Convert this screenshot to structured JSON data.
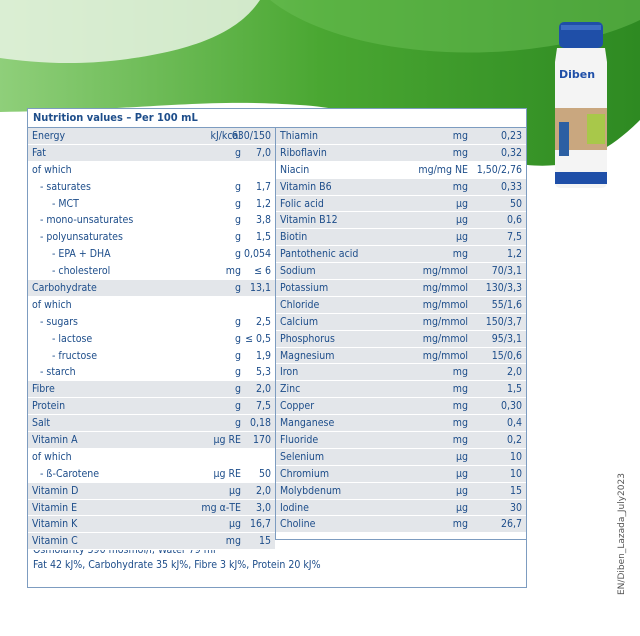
{
  "panel": {
    "title": "Nutrition values – Per 100 mL",
    "left_rows": [
      {
        "name": "Energy",
        "unit": "kJ/kcal",
        "value": "630/150",
        "shade": true,
        "indent": 0
      },
      {
        "name": "Fat",
        "unit": "g",
        "value": "7,0",
        "shade": true,
        "indent": 0
      },
      {
        "name": "of which",
        "unit": "",
        "value": "",
        "shade": false,
        "indent": 0
      },
      {
        "name": "- saturates",
        "unit": "g",
        "value": "1,7",
        "shade": false,
        "indent": 1
      },
      {
        "name": "- MCT",
        "unit": "g",
        "value": "1,2",
        "shade": false,
        "indent": 2
      },
      {
        "name": "- mono-unsaturates",
        "unit": "g",
        "value": "3,8",
        "shade": false,
        "indent": 1
      },
      {
        "name": "- polyunsaturates",
        "unit": "g",
        "value": "1,5",
        "shade": false,
        "indent": 1
      },
      {
        "name": "- EPA + DHA",
        "unit": "g",
        "value": "0,054",
        "shade": false,
        "indent": 2
      },
      {
        "name": "- cholesterol",
        "unit": "mg",
        "value": "≤ 6",
        "shade": false,
        "indent": 2
      },
      {
        "name": "Carbohydrate",
        "unit": "g",
        "value": "13,1",
        "shade": true,
        "indent": 0
      },
      {
        "name": "of which",
        "unit": "",
        "value": "",
        "shade": false,
        "indent": 0
      },
      {
        "name": "- sugars",
        "unit": "g",
        "value": "2,5",
        "shade": false,
        "indent": 1
      },
      {
        "name": "- lactose",
        "unit": "g",
        "value": "≤ 0,5",
        "shade": false,
        "indent": 2
      },
      {
        "name": "- fructose",
        "unit": "g",
        "value": "1,9",
        "shade": false,
        "indent": 2
      },
      {
        "name": "- starch",
        "unit": "g",
        "value": "5,3",
        "shade": false,
        "indent": 1
      },
      {
        "name": "Fibre",
        "unit": "g",
        "value": "2,0",
        "shade": true,
        "indent": 0
      },
      {
        "name": "Protein",
        "unit": "g",
        "value": "7,5",
        "shade": true,
        "indent": 0
      },
      {
        "name": "Salt",
        "unit": "g",
        "value": "0,18",
        "shade": true,
        "indent": 0
      },
      {
        "name": "Vitamin A",
        "unit": "µg RE",
        "value": "170",
        "shade": true,
        "indent": 0
      },
      {
        "name": "of which",
        "unit": "",
        "value": "",
        "shade": false,
        "indent": 0
      },
      {
        "name": "- ß-Carotene",
        "unit": "µg RE",
        "value": "50",
        "shade": false,
        "indent": 1
      },
      {
        "name": "Vitamin D",
        "unit": "µg",
        "value": "2,0",
        "shade": true,
        "indent": 0
      },
      {
        "name": "Vitamin E",
        "unit": "mg α-TE",
        "value": "3,0",
        "shade": true,
        "indent": 0
      },
      {
        "name": "Vitamin K",
        "unit": "µg",
        "value": "16,7",
        "shade": true,
        "indent": 0
      },
      {
        "name": "Vitamin C",
        "unit": "mg",
        "value": "15",
        "shade": true,
        "indent": 0
      }
    ],
    "right_rows": [
      {
        "name": "Thiamin",
        "unit": "mg",
        "value": "0,23",
        "shade": true
      },
      {
        "name": "Riboflavin",
        "unit": "mg",
        "value": "0,32",
        "shade": true
      },
      {
        "name": "Niacin",
        "unit": "mg/mg NE",
        "value": "1,50/2,76",
        "shade": false
      },
      {
        "name": "Vitamin B6",
        "unit": "mg",
        "value": "0,33",
        "shade": true
      },
      {
        "name": "Folic acid",
        "unit": "µg",
        "value": "50",
        "shade": true
      },
      {
        "name": "Vitamin B12",
        "unit": "µg",
        "value": "0,6",
        "shade": true
      },
      {
        "name": "Biotin",
        "unit": "µg",
        "value": "7,5",
        "shade": true
      },
      {
        "name": "Pantothenic acid",
        "unit": "mg",
        "value": "1,2",
        "shade": true
      },
      {
        "name": "Sodium",
        "unit": "mg/mmol",
        "value": "70/3,1",
        "shade": true
      },
      {
        "name": "Potassium",
        "unit": "mg/mmol",
        "value": "130/3,3",
        "shade": true
      },
      {
        "name": "Chloride",
        "unit": "mg/mmol",
        "value": "55/1,6",
        "shade": true
      },
      {
        "name": "Calcium",
        "unit": "mg/mmol",
        "value": "150/3,7",
        "shade": true
      },
      {
        "name": "Phosphorus",
        "unit": "mg/mmol",
        "value": "95/3,1",
        "shade": true
      },
      {
        "name": "Magnesium",
        "unit": "mg/mmol",
        "value": "15/0,6",
        "shade": true
      },
      {
        "name": "Iron",
        "unit": "mg",
        "value": "2,0",
        "shade": true
      },
      {
        "name": "Zinc",
        "unit": "mg",
        "value": "1,5",
        "shade": true
      },
      {
        "name": "Copper",
        "unit": "mg",
        "value": "0,30",
        "shade": true
      },
      {
        "name": "Manganese",
        "unit": "mg",
        "value": "0,4",
        "shade": true
      },
      {
        "name": "Fluoride",
        "unit": "mg",
        "value": "0,2",
        "shade": true
      },
      {
        "name": "Selenium",
        "unit": "µg",
        "value": "10",
        "shade": true
      },
      {
        "name": "Chromium",
        "unit": "µg",
        "value": "10",
        "shade": true
      },
      {
        "name": "Molybdenum",
        "unit": "µg",
        "value": "15",
        "shade": true
      },
      {
        "name": "Iodine",
        "unit": "µg",
        "value": "30",
        "shade": true
      },
      {
        "name": "Choline",
        "unit": "mg",
        "value": "26,7",
        "shade": true
      }
    ],
    "footer_line1": "Osmolarity 390 mosmol/l, Water 79 ml",
    "footer_line2": "Fat 42 kJ%, Carbohydrate 35 kJ%, Fibre 3 kJ%, Protein 20 kJ%"
  },
  "product": {
    "brand": "Diben",
    "cap_color": "#1f4fa8",
    "label_color": "#c9a77f"
  },
  "document_code": "EN/Diben_Lazada_July2023",
  "colors": {
    "wave_green": "#3f9a2a",
    "text_blue": "#1d4d8a",
    "row_shade": "#e3e6ea"
  }
}
